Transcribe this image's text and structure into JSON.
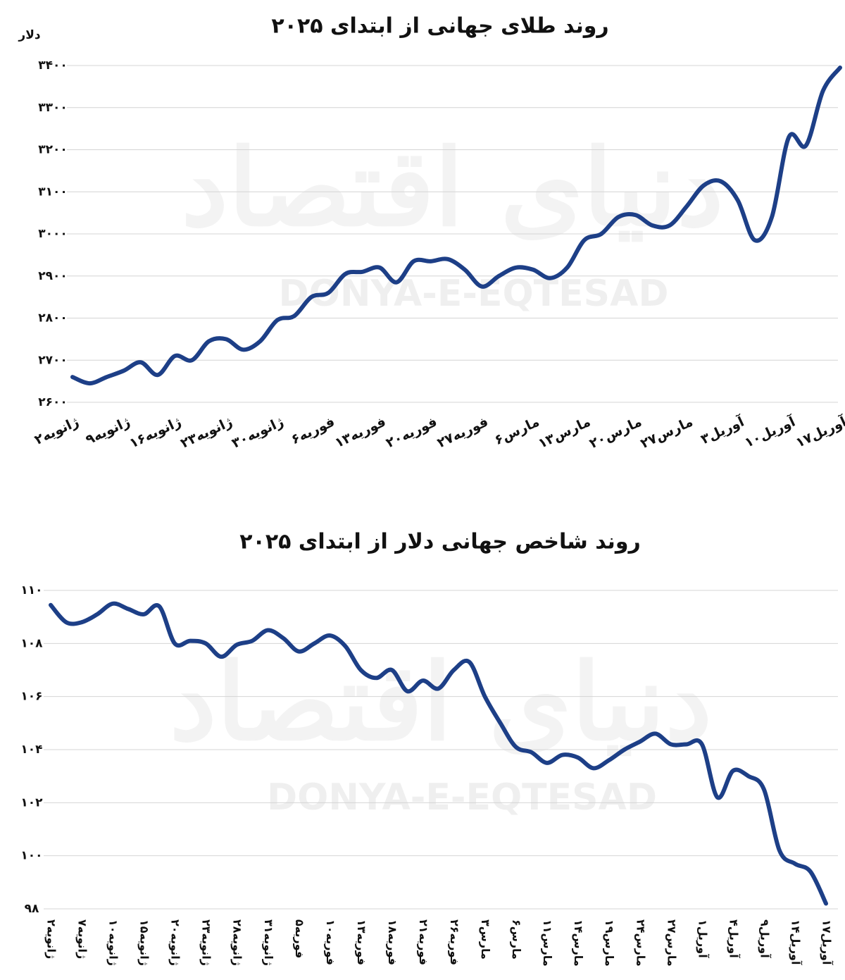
{
  "watermark": {
    "fa": "دنیای اقتصاد",
    "en": "DONYA-E-EQTESAD"
  },
  "chart_data": [
    {
      "type": "line",
      "title": "روند طلای جهانی از ابتدای ۲۰۲۵",
      "y_label": "دلار",
      "categories": [
        "۲ژانویه",
        null,
        null,
        "۹ژانویه",
        null,
        null,
        "۱۶ژانویه",
        null,
        null,
        "۲۳ژانویه",
        null,
        null,
        "۳۰ژانویه",
        null,
        null,
        "۶فوریه",
        null,
        null,
        "۱۳فوریه",
        null,
        null,
        "۲۰فوریه",
        null,
        null,
        "۲۷فوریه",
        null,
        null,
        "۶مارس",
        null,
        null,
        "۱۳مارس",
        null,
        null,
        "۲۰مارس",
        null,
        null,
        "۲۷مارس",
        null,
        null,
        "۳آوریل",
        null,
        null,
        "۱۰آوریل",
        null,
        null,
        "۱۷آوریل"
      ],
      "series": [
        {
          "name": null,
          "color": "#1d3f87",
          "values": [
            2660,
            2645,
            2660,
            2675,
            2695,
            2665,
            2710,
            2700,
            2745,
            2750,
            2725,
            2745,
            2795,
            2805,
            2850,
            2860,
            2905,
            2910,
            2920,
            2885,
            2935,
            2935,
            2940,
            2915,
            2875,
            2900,
            2920,
            2915,
            2895,
            2920,
            2985,
            3000,
            3040,
            3045,
            3020,
            3020,
            3065,
            3115,
            3125,
            3080,
            2985,
            3040,
            3230,
            3210,
            3340,
            3395
          ]
        }
      ],
      "ylim": [
        2600,
        3400
      ],
      "yticks": [
        {
          "value": 2600,
          "label": "۲۶۰۰"
        },
        {
          "value": 2700,
          "label": "۲۷۰۰"
        },
        {
          "value": 2800,
          "label": "۲۸۰۰"
        },
        {
          "value": 2900,
          "label": "۲۹۰۰"
        },
        {
          "value": 3000,
          "label": "۳۰۰۰"
        },
        {
          "value": 3100,
          "label": "۳۱۰۰"
        },
        {
          "value": 3200,
          "label": "۳۲۰۰"
        },
        {
          "value": 3300,
          "label": "۳۳۰۰"
        },
        {
          "value": 3400,
          "label": "۳۴۰۰"
        }
      ],
      "grid": true
    },
    {
      "type": "line",
      "title": "روند شاخص جهانی دلار از ابتدای ۲۰۲۵",
      "categories": [
        "۲ژانویه",
        null,
        "۷ژانویه",
        null,
        "۱۰ژانویه",
        null,
        "۱۵ژانویه",
        null,
        "۲۰ژانویه",
        null,
        "۲۳ژانویه",
        null,
        "۲۸ژانویه",
        null,
        "۳۱ژانویه",
        null,
        "۵فوریه",
        null,
        "۱۰فوریه",
        null,
        "۱۳فوریه",
        null,
        "۱۸فوریه",
        null,
        "۲۱فوریه",
        null,
        "۲۶فوریه",
        null,
        "۳مارس",
        null,
        "۶مارس",
        null,
        "۱۱مارس",
        null,
        "۱۴مارس",
        null,
        "۱۹مارس",
        null,
        "۲۴مارس",
        null,
        "۲۷مارس",
        null,
        "۱آوریل",
        null,
        "۴آوریل",
        null,
        "۹آوریل",
        null,
        "۱۴آوریل",
        null,
        "۱۷آوریل"
      ],
      "series": [
        {
          "name": null,
          "color": "#1d3f87",
          "values": [
            109.45,
            108.8,
            108.8,
            109.1,
            109.5,
            109.3,
            109.1,
            109.4,
            108.0,
            108.1,
            108.0,
            107.5,
            107.95,
            108.1,
            108.5,
            108.2,
            107.7,
            108.0,
            108.3,
            107.9,
            107.0,
            106.7,
            107.0,
            106.2,
            106.6,
            106.3,
            107.0,
            107.3,
            106.0,
            105.0,
            104.1,
            103.9,
            103.5,
            103.8,
            103.7,
            103.3,
            103.6,
            104.0,
            104.3,
            104.6,
            104.2,
            104.2,
            104.2,
            102.2,
            103.2,
            103.0,
            102.5,
            100.2,
            99.7,
            99.4,
            98.2
          ]
        }
      ],
      "ylim": [
        98,
        110
      ],
      "yticks": [
        {
          "value": 98,
          "label": "۹۸"
        },
        {
          "value": 100,
          "label": "۱۰۰"
        },
        {
          "value": 102,
          "label": "۱۰۲"
        },
        {
          "value": 104,
          "label": "۱۰۴"
        },
        {
          "value": 106,
          "label": "۱۰۶"
        },
        {
          "value": 108,
          "label": "۱۰۸"
        },
        {
          "value": 110,
          "label": "۱۱۰"
        }
      ],
      "grid": true
    }
  ]
}
